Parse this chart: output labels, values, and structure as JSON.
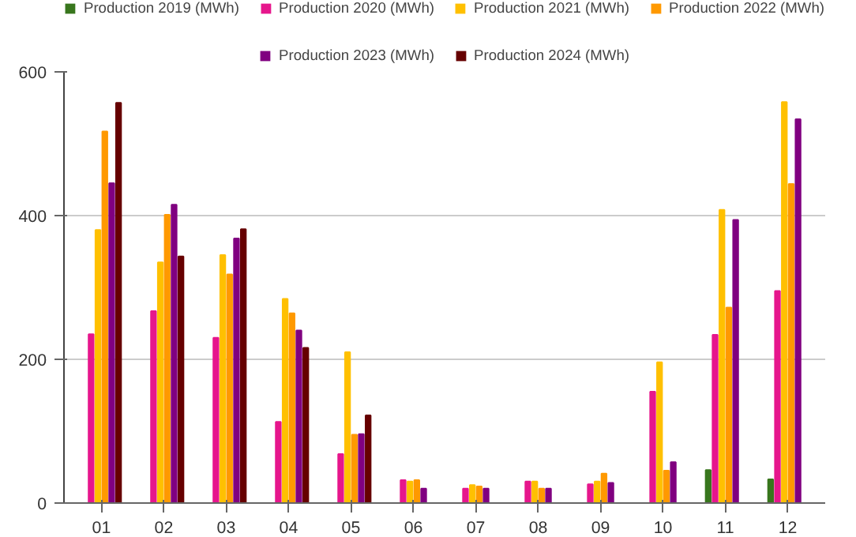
{
  "chart_data": {
    "type": "bar",
    "categories": [
      "01",
      "02",
      "03",
      "04",
      "05",
      "06",
      "07",
      "08",
      "09",
      "10",
      "11",
      "12"
    ],
    "series": [
      {
        "name": "Production 2019 (MWh)",
        "color": "#38761d",
        "values": [
          null,
          null,
          null,
          null,
          null,
          null,
          null,
          null,
          null,
          null,
          46,
          33
        ]
      },
      {
        "name": "Production 2020 (MWh)",
        "color": "#e6168c",
        "values": [
          235,
          267,
          230,
          113,
          68,
          32,
          20,
          30,
          26,
          155,
          234,
          295
        ]
      },
      {
        "name": "Production 2021 (MWh)",
        "color": "#ffc000",
        "values": [
          380,
          335,
          345,
          284,
          210,
          30,
          25,
          30,
          30,
          196,
          408,
          558
        ]
      },
      {
        "name": "Production 2022 (MWh)",
        "color": "#ff9900",
        "values": [
          517,
          401,
          318,
          264,
          95,
          32,
          23,
          20,
          41,
          45,
          272,
          444
        ]
      },
      {
        "name": "Production 2023 (MWh)",
        "color": "#800080",
        "values": [
          445,
          415,
          368,
          240,
          96,
          20,
          20,
          20,
          28,
          57,
          394,
          534
        ]
      },
      {
        "name": "Production 2024 (MWh)",
        "color": "#660000",
        "values": [
          557,
          343,
          381,
          216,
          122,
          null,
          null,
          null,
          null,
          null,
          null,
          null
        ]
      }
    ],
    "ylim": [
      0,
      600
    ],
    "yticks": [
      0,
      200,
      400,
      600
    ],
    "grid": "y",
    "legend": "top"
  }
}
